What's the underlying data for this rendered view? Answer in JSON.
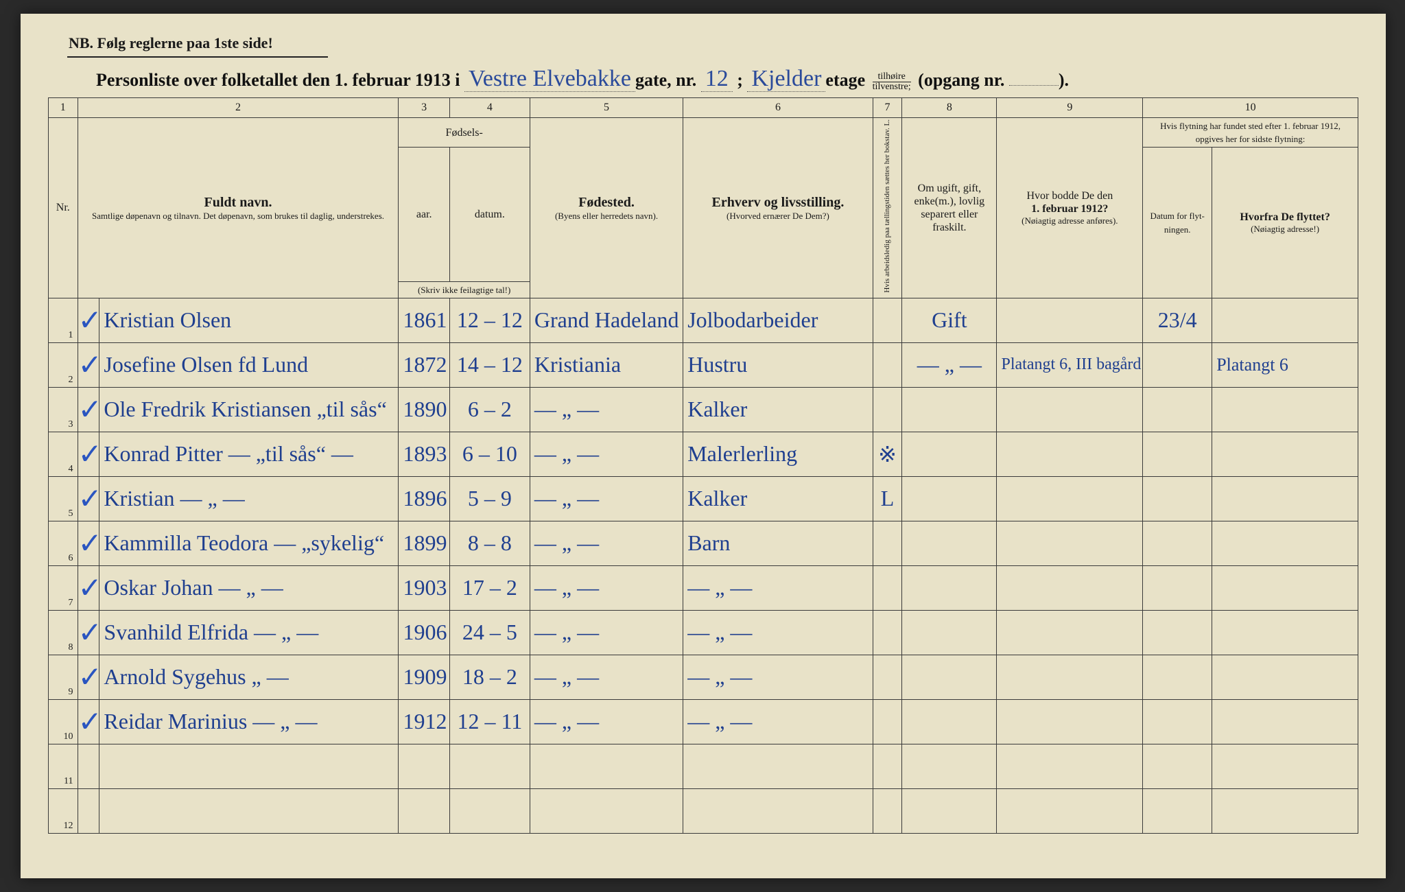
{
  "header": {
    "nb": "NB.  Følg reglerne paa 1ste side!",
    "title_prefix": "Personliste over folketallet den 1. februar 1913 i",
    "street_hand": "Vestre Elvebakke",
    "gate_label": "gate, nr.",
    "nr_hand": "12",
    "semicolon": " ; ",
    "floor_hand": "Kjelder",
    "etage_label": "etage",
    "frac_top": "tilhøire",
    "frac_bot": "tilvenstre;",
    "opgang": "(opgang nr.",
    "opgang_end": ")."
  },
  "colnums": [
    "1",
    "2",
    "3",
    "4",
    "5",
    "6",
    "7",
    "8",
    "9",
    "10"
  ],
  "columns": {
    "c2_strong": "Fuldt navn.",
    "c2_sub": "Samtlige døpenavn og tilnavn. Det døpenavn, som brukes til daglig, understrekes.",
    "c34_top": "Fødsels-",
    "c3": "aar.",
    "c4": "datum.",
    "c34_sub": "(Skriv ikke feilagtige tal!)",
    "c5_strong": "Fødested.",
    "c5_sub": "(Byens eller herredets navn).",
    "c6_strong": "Erhverv og livsstilling.",
    "c6_sub": "(Hvorved ernærer De Dem?)",
    "c7": "Hvis arbeidsledig paa tællingstiden sættes her bokstav. L.",
    "c8": "Om ugift, gift, enke(m.), lovlig separert eller fraskilt.",
    "c9a": "Hvor bodde De den",
    "c9b": "1. februar 1912?",
    "c9c": "(Nøiagtig adresse anføres).",
    "c10_top": "Hvis flytning har fundet sted efter 1. februar 1912, opgives her for sidste flytning:",
    "c10a": "Datum for flyt-ningen.",
    "c10b_strong": "Hvorfra De flyttet?",
    "c10b_sub": "(Nøiagtig adresse!)"
  },
  "rows": [
    {
      "nr": "1",
      "tick": "✓",
      "name": "Kristian Olsen",
      "year": "1861",
      "date": "12 – 12",
      "birthplace": "Grand Hadeland",
      "occ": "Jolbodarbeider",
      "c7": "",
      "c8": "Gift",
      "c9": "",
      "c10a": "23/4",
      "c10b": ""
    },
    {
      "nr": "2",
      "tick": "✓",
      "name": "Josefine Olsen fd Lund",
      "year": "1872",
      "date": "14 – 12",
      "birthplace": "Kristiania",
      "occ": "Hustru",
      "c7": "",
      "c8": "— „ —",
      "c9": "Platangt 6, III bagård",
      "c10a": "",
      "c10b": "Platangt 6"
    },
    {
      "nr": "3",
      "tick": "✓",
      "name": "Ole Fredrik Kristiansen  „til sås“",
      "year": "1890",
      "date": "6 – 2",
      "birthplace": "— „ —",
      "occ": "Kalker",
      "c7": "",
      "c8": "",
      "c9": "",
      "c10a": "",
      "c10b": ""
    },
    {
      "nr": "4",
      "tick": "✓",
      "name": "Konrad Pitter — „til sås“ —",
      "year": "1893",
      "date": "6 – 10",
      "birthplace": "— „ —",
      "occ": "Malerlerling",
      "c7": "※",
      "c8": "",
      "c9": "",
      "c10a": "",
      "c10b": ""
    },
    {
      "nr": "5",
      "tick": "✓",
      "name": "Kristian     —  „  —",
      "year": "1896",
      "date": "5 – 9",
      "birthplace": "— „ —",
      "occ": "Kalker",
      "c7": "L",
      "c8": "",
      "c9": "",
      "c10a": "",
      "c10b": ""
    },
    {
      "nr": "6",
      "tick": "✓",
      "name": "Kammilla Teodora — „sykelig“",
      "year": "1899",
      "date": "8 – 8",
      "birthplace": "— „ —",
      "occ": "Barn",
      "c7": "",
      "c8": "",
      "c9": "",
      "c10a": "",
      "c10b": ""
    },
    {
      "nr": "7",
      "tick": "✓",
      "name": "Oskar Johan   —  „  —",
      "year": "1903",
      "date": "17 – 2",
      "birthplace": "— „ —",
      "occ": "— „ —",
      "c7": "",
      "c8": "",
      "c9": "",
      "c10a": "",
      "c10b": ""
    },
    {
      "nr": "8",
      "tick": "✓",
      "name": "Svanhild Elfrida — „ —",
      "year": "1906",
      "date": "24 – 5",
      "birthplace": "— „ —",
      "occ": "— „ —",
      "c7": "",
      "c8": "",
      "c9": "",
      "c10a": "",
      "c10b": ""
    },
    {
      "nr": "9",
      "tick": "✓",
      "name": "Arnold  Sygehus   „ —",
      "year": "1909",
      "date": "18 – 2",
      "birthplace": "— „ —",
      "occ": "— „ —",
      "c7": "",
      "c8": "",
      "c9": "",
      "c10a": "",
      "c10b": ""
    },
    {
      "nr": "10",
      "tick": "✓",
      "name": "Reidar Marinius — „ —",
      "year": "1912",
      "date": "12 – 11",
      "birthplace": "— „ —",
      "occ": "— „ —",
      "c7": "",
      "c8": "",
      "c9": "",
      "c10a": "",
      "c10b": ""
    },
    {
      "nr": "11",
      "tick": "",
      "name": "",
      "year": "",
      "date": "",
      "birthplace": "",
      "occ": "",
      "c7": "",
      "c8": "",
      "c9": "",
      "c10a": "",
      "c10b": ""
    },
    {
      "nr": "12",
      "tick": "",
      "name": "",
      "year": "",
      "date": "",
      "birthplace": "",
      "occ": "",
      "c7": "",
      "c8": "",
      "c9": "",
      "c10a": "",
      "c10b": ""
    }
  ],
  "colors": {
    "paper": "#e8e2c8",
    "ink_print": "#1a1a1a",
    "ink_hand": "#1f3f8f",
    "border": "#3a3a3a"
  }
}
